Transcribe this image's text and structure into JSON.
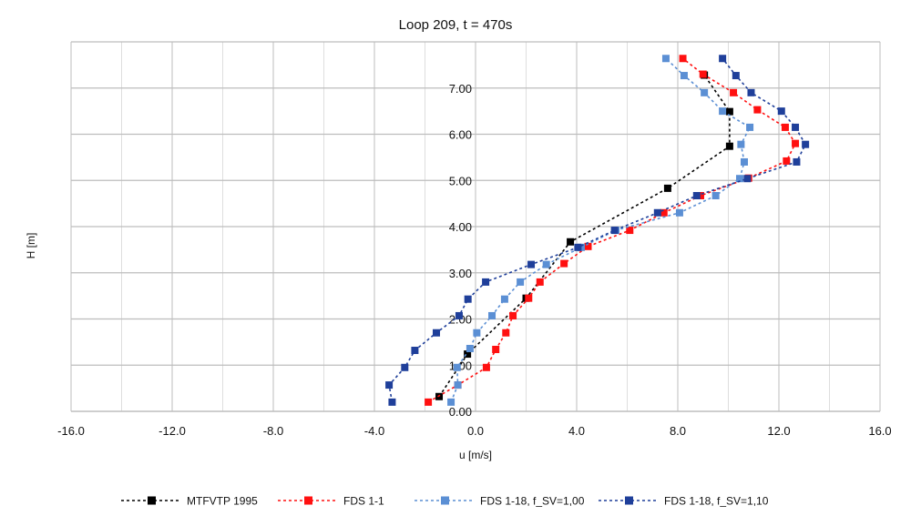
{
  "chart_data": {
    "type": "line",
    "title": "Loop 209, t = 470s",
    "xlabel": "u [m/s]",
    "ylabel": "H [m]",
    "xlim": [
      -16,
      16
    ],
    "ylim": [
      0,
      8
    ],
    "xticks": [
      "-16.0",
      "-12.0",
      "-8.0",
      "-4.0",
      "0.0",
      "4.0",
      "8.0",
      "12.0",
      "16.0"
    ],
    "xtick_values": [
      -16,
      -12,
      -8,
      -4,
      0,
      4,
      8,
      12,
      16
    ],
    "yticks": [
      "0.00",
      "1.00",
      "2.00",
      "3.00",
      "4.00",
      "5.00",
      "6.00",
      "7.00"
    ],
    "ytick_values": [
      0,
      1,
      2,
      3,
      4,
      5,
      6,
      7
    ],
    "grid": true,
    "legend_position": "bottom",
    "series": [
      {
        "name": "MTFVTP 1995",
        "color": "#000000",
        "points": [
          [
            -1.44,
            0.32
          ],
          [
            -0.32,
            1.24
          ],
          [
            2.0,
            2.45
          ],
          [
            3.75,
            3.67
          ],
          [
            7.6,
            4.83
          ],
          [
            10.05,
            5.74
          ],
          [
            10.05,
            6.49
          ],
          [
            9.05,
            7.28
          ]
        ]
      },
      {
        "name": "FDS 1-1",
        "color": "#ff1010",
        "points": [
          [
            -1.87,
            0.2
          ],
          [
            -0.7,
            0.57
          ],
          [
            0.43,
            0.95
          ],
          [
            0.8,
            1.34
          ],
          [
            1.2,
            1.7
          ],
          [
            1.48,
            2.07
          ],
          [
            2.1,
            2.45
          ],
          [
            2.55,
            2.8
          ],
          [
            3.5,
            3.2
          ],
          [
            4.45,
            3.57
          ],
          [
            6.1,
            3.92
          ],
          [
            7.45,
            4.3
          ],
          [
            8.9,
            4.67
          ],
          [
            10.8,
            5.05
          ],
          [
            12.3,
            5.42
          ],
          [
            12.65,
            5.8
          ],
          [
            12.25,
            6.15
          ],
          [
            11.15,
            6.53
          ],
          [
            10.2,
            6.9
          ],
          [
            9.0,
            7.3
          ],
          [
            8.2,
            7.64
          ]
        ]
      },
      {
        "name": "FDS 1-18, f_SV=1,00",
        "color": "#5b8fd4",
        "points": [
          [
            -0.97,
            0.2
          ],
          [
            -0.7,
            0.57
          ],
          [
            -0.73,
            0.95
          ],
          [
            -0.22,
            1.36
          ],
          [
            0.05,
            1.7
          ],
          [
            0.65,
            2.07
          ],
          [
            1.15,
            2.43
          ],
          [
            1.77,
            2.8
          ],
          [
            2.8,
            3.18
          ],
          [
            4.18,
            3.55
          ],
          [
            5.55,
            3.92
          ],
          [
            8.07,
            4.3
          ],
          [
            9.5,
            4.67
          ],
          [
            10.45,
            5.04
          ],
          [
            10.63,
            5.4
          ],
          [
            10.5,
            5.78
          ],
          [
            10.85,
            6.15
          ],
          [
            9.77,
            6.5
          ],
          [
            9.05,
            6.9
          ],
          [
            8.25,
            7.27
          ],
          [
            7.53,
            7.64
          ]
        ]
      },
      {
        "name": "FDS 1-18, f_SV=1,10",
        "color": "#1f3f9a",
        "points": [
          [
            -3.3,
            0.2
          ],
          [
            -3.42,
            0.57
          ],
          [
            -2.8,
            0.95
          ],
          [
            -2.4,
            1.32
          ],
          [
            -1.55,
            1.7
          ],
          [
            -0.65,
            2.07
          ],
          [
            -0.3,
            2.43
          ],
          [
            0.4,
            2.8
          ],
          [
            2.2,
            3.18
          ],
          [
            4.05,
            3.55
          ],
          [
            5.5,
            3.92
          ],
          [
            7.2,
            4.3
          ],
          [
            8.75,
            4.67
          ],
          [
            10.75,
            5.04
          ],
          [
            12.7,
            5.4
          ],
          [
            13.05,
            5.78
          ],
          [
            12.65,
            6.15
          ],
          [
            12.1,
            6.5
          ],
          [
            10.9,
            6.9
          ],
          [
            10.3,
            7.27
          ],
          [
            9.77,
            7.64
          ]
        ]
      }
    ]
  }
}
